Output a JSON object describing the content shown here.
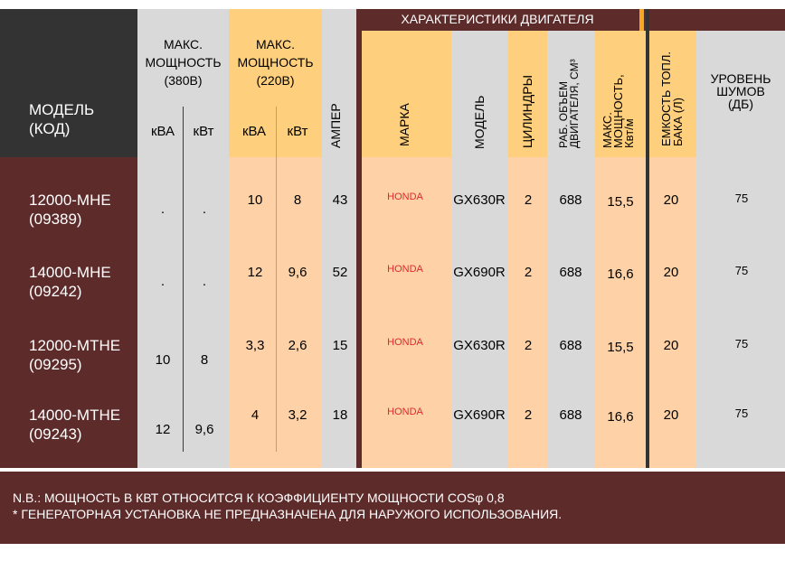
{
  "header": {
    "model_label": "МОДЕЛЬ\n(КОД)",
    "power_380_title": "МАКС.\nМОЩНОСТЬ\n(380В)",
    "power_220_title": "МАКС.\nМОЩНОСТЬ\n(220В)",
    "kva": "кВА",
    "kw": "кВт",
    "amper": "АМПЕР",
    "engine_title": "ХАРАКТЕРИСТИКИ ДВИГАТЕЛЯ",
    "brand": "МАРКА",
    "engine_model": "МОДЕЛЬ",
    "cylinders": "ЦИЛИНДРЫ",
    "displacement": "РАБ. ОБЪЕМ\nДВИГАТЕЛЯ, СМ³",
    "engine_power": "МАКС.\nМОЩНОСТЬ,\nКвт/м",
    "fuel_tank": "ЕМКОСТЬ ТОПЛ.\nБАКА (Л)",
    "noise": "УРОВЕНЬ\nШУМОВ\n(ДБ)"
  },
  "rows": [
    {
      "model": "12000-MHE\n(09389)",
      "kva380": ".",
      "kw380": ".",
      "kva220": "10",
      "kw220": "8",
      "amp": "43",
      "brand": "HONDA",
      "engine": "GX630R",
      "cyl": "2",
      "disp": "688",
      "power": "15,5",
      "tank": "20",
      "noise": "75"
    },
    {
      "model": "14000-MHE\n(09242)",
      "kva380": ".",
      "kw380": ".",
      "kva220": "12",
      "kw220": "9,6",
      "amp": "52",
      "brand": "HONDA",
      "engine": "GX690R",
      "cyl": "2",
      "disp": "688",
      "power": "16,6",
      "tank": "20",
      "noise": "75"
    },
    {
      "model": "12000-MTHE\n(09295)",
      "kva380": "10",
      "kw380": "8",
      "kva220": "3,3",
      "kw220": "2,6",
      "amp": "15",
      "brand": "HONDA",
      "engine": "GX630R",
      "cyl": "2",
      "disp": "688",
      "power": "15,5",
      "tank": "20",
      "noise": "75"
    },
    {
      "model": "14000-MTHE\n(09243)",
      "kva380": "12",
      "kw380": "9,6",
      "kva220": "4",
      "kw220": "3,2",
      "amp": "18",
      "brand": "HONDA",
      "engine": "GX690R",
      "cyl": "2",
      "disp": "688",
      "power": "16,6",
      "tank": "20",
      "noise": "75"
    }
  ],
  "notes": [
    "N.B.: МОЩНОСТЬ В КВТ  ОТНОСИТСЯ К КОЭФФИЦИЕНТУ МОЩНОСТИ COSφ 0,8",
    "* ГЕНЕРАТОРНАЯ УСТАНОВКА НЕ ПРЕДНАЗНАЧЕНА ДЛЯ НАРУЖОГО ИСПОЛЬЗОВАНИЯ."
  ],
  "colors": {
    "dark_red": "#5e2b2b",
    "dark_gray": "#333333",
    "light_gray": "#d9d9d9",
    "orange_header": "#fed07d",
    "peach": "#fed2a6",
    "brand_red": "#e3262a"
  }
}
